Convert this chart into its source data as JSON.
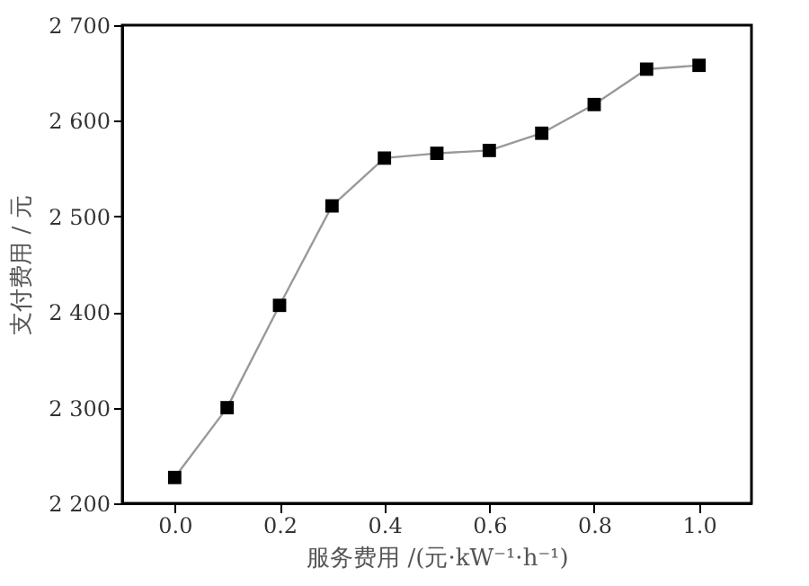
{
  "chart_data": {
    "type": "line",
    "xlabel": "服务费用 /(元·kW⁻¹·h⁻¹)",
    "ylabel": "支付费用 / 元",
    "x": [
      0.0,
      0.1,
      0.2,
      0.3,
      0.4,
      0.5,
      0.6,
      0.7,
      0.8,
      0.9,
      1.0
    ],
    "series": [
      {
        "color": "#999999",
        "values": [
          2227,
          2300,
          2407,
          2511,
          2561,
          2566,
          2569,
          2587,
          2617,
          2654,
          2658
        ]
      }
    ],
    "marker": "square",
    "line_style": "solid",
    "grid": false,
    "xlim": [
      -0.1,
      1.1
    ],
    "xticks": [
      {
        "value": 0,
        "label": "0.0"
      },
      0.2,
      0.4,
      0.6,
      0.8,
      {
        "value": 1,
        "label": "1.0"
      }
    ],
    "ylim": [
      2200,
      2700
    ],
    "yticks": [
      {
        "value": 2200,
        "label": "2 200"
      },
      {
        "value": 2300,
        "label": "2 300"
      },
      {
        "value": 2400,
        "label": "2 400"
      },
      {
        "value": 2500,
        "label": "2 500"
      },
      {
        "value": 2600,
        "label": "2 600"
      },
      {
        "value": 2700,
        "label": "2 700"
      }
    ]
  }
}
